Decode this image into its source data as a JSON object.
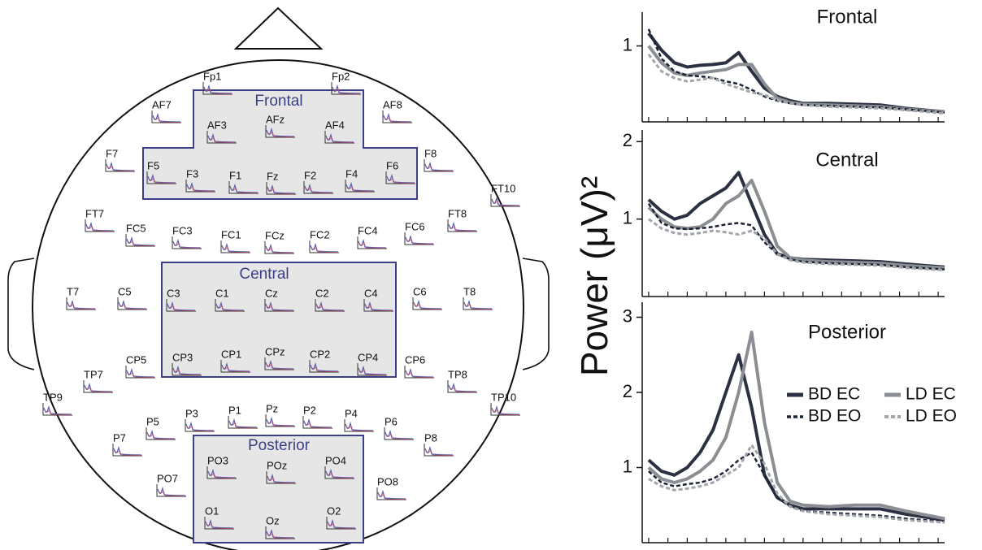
{
  "head": {
    "regions": [
      "Frontal",
      "Central",
      "Posterior"
    ],
    "electrodes": [
      "Fp1",
      "Fp2",
      "AF7",
      "AF8",
      "AF3",
      "AFz",
      "AF4",
      "F7",
      "F5",
      "F3",
      "F1",
      "Fz",
      "F2",
      "F4",
      "F6",
      "F8",
      "FT10",
      "FT7",
      "FC5",
      "FC3",
      "FC1",
      "FCz",
      "FC2",
      "FC4",
      "FC6",
      "FT8",
      "T7",
      "C5",
      "C3",
      "C1",
      "Cz",
      "C2",
      "C4",
      "C6",
      "T8",
      "TP7",
      "CP5",
      "CP3",
      "CP1",
      "CPz",
      "CP2",
      "CP4",
      "CP6",
      "TP8",
      "TP9",
      "TP10",
      "P7",
      "P5",
      "P3",
      "P1",
      "Pz",
      "P2",
      "P4",
      "P6",
      "P8",
      "PO7",
      "PO3",
      "POz",
      "PO4",
      "PO8",
      "O1",
      "Oz",
      "O2"
    ]
  },
  "chart_data": [
    {
      "type": "line",
      "title": "Frontal",
      "x": [
        2,
        3,
        4,
        5,
        6,
        7,
        8,
        9,
        10,
        11,
        12,
        13,
        14,
        16,
        18,
        20,
        22,
        25
      ],
      "xlim": [
        1.5,
        25
      ],
      "xticks": [
        2,
        3.5,
        5,
        6.5,
        8,
        9.5,
        11,
        12.5,
        14,
        15.5,
        17,
        18.5,
        20,
        21.5,
        23,
        24.5
      ],
      "ylim": [
        0.1,
        1.4
      ],
      "yticks": [
        1
      ],
      "series": [
        {
          "color": "#2b3142",
          "width": 4,
          "dash": false,
          "values": [
            1.15,
            0.95,
            0.8,
            0.75,
            0.77,
            0.78,
            0.8,
            0.92,
            0.7,
            0.5,
            0.4,
            0.35,
            0.32,
            0.32,
            0.31,
            0.3,
            0.26,
            0.22
          ]
        },
        {
          "color": "#8b8e92",
          "width": 4,
          "dash": false,
          "values": [
            1.0,
            0.8,
            0.68,
            0.65,
            0.68,
            0.7,
            0.72,
            0.78,
            0.78,
            0.55,
            0.38,
            0.33,
            0.31,
            0.3,
            0.29,
            0.28,
            0.25,
            0.22
          ]
        },
        {
          "color": "#1c2236",
          "width": 2.5,
          "dash": true,
          "values": [
            1.2,
            0.85,
            0.7,
            0.65,
            0.64,
            0.62,
            0.58,
            0.55,
            0.48,
            0.4,
            0.35,
            0.32,
            0.3,
            0.29,
            0.28,
            0.27,
            0.25,
            0.21
          ]
        },
        {
          "color": "#a2a5aa",
          "width": 3,
          "dash": true,
          "values": [
            0.9,
            0.7,
            0.62,
            0.58,
            0.6,
            0.62,
            0.55,
            0.5,
            0.45,
            0.42,
            0.36,
            0.32,
            0.3,
            0.28,
            0.27,
            0.26,
            0.24,
            0.2
          ]
        }
      ]
    },
    {
      "type": "line",
      "title": "Central",
      "ylabel": "Power (μV)²",
      "x": [
        2,
        3,
        4,
        5,
        6,
        7,
        8,
        9,
        10,
        11,
        12,
        13,
        14,
        16,
        18,
        20,
        22,
        25
      ],
      "xlim": [
        1.5,
        25
      ],
      "xticks": [
        2,
        3.5,
        5,
        6.5,
        8,
        9.5,
        11,
        12.5,
        14,
        15.5,
        17,
        18.5,
        20,
        21.5,
        23,
        24.5
      ],
      "ylim": [
        0,
        2.15
      ],
      "yticks": [
        1,
        2
      ],
      "series": [
        {
          "color": "#2b3142",
          "width": 4,
          "dash": false,
          "values": [
            1.25,
            1.1,
            1.0,
            1.05,
            1.2,
            1.3,
            1.4,
            1.6,
            1.2,
            0.8,
            0.55,
            0.5,
            0.48,
            0.47,
            0.46,
            0.45,
            0.42,
            0.38
          ]
        },
        {
          "color": "#8b8e92",
          "width": 4,
          "dash": false,
          "values": [
            1.15,
            1.0,
            0.9,
            0.88,
            0.9,
            1.0,
            1.2,
            1.3,
            1.5,
            1.1,
            0.65,
            0.5,
            0.47,
            0.45,
            0.44,
            0.43,
            0.4,
            0.37
          ]
        },
        {
          "color": "#1c2236",
          "width": 2.5,
          "dash": true,
          "values": [
            1.2,
            0.95,
            0.88,
            0.87,
            0.88,
            0.9,
            0.93,
            0.95,
            0.92,
            0.7,
            0.55,
            0.48,
            0.45,
            0.43,
            0.42,
            0.41,
            0.38,
            0.35
          ]
        },
        {
          "color": "#a2a5aa",
          "width": 3,
          "dash": true,
          "values": [
            1.0,
            0.88,
            0.82,
            0.8,
            0.82,
            0.85,
            0.83,
            0.8,
            0.85,
            0.75,
            0.55,
            0.47,
            0.44,
            0.42,
            0.41,
            0.4,
            0.37,
            0.34
          ]
        }
      ]
    },
    {
      "type": "line",
      "title": "Posterior",
      "legend": "right",
      "x": [
        2,
        3,
        4,
        5,
        6,
        7,
        8,
        9,
        10,
        11,
        12,
        13,
        14,
        16,
        18,
        20,
        22,
        25
      ],
      "xlim": [
        1.5,
        25
      ],
      "xticks": [
        2,
        3.5,
        5,
        6.5,
        8,
        9.5,
        11,
        12.5,
        14,
        15.5,
        17,
        18.5,
        20,
        21.5,
        23,
        24.5
      ],
      "ylim": [
        0,
        3.2
      ],
      "yticks": [
        1,
        2,
        3
      ],
      "series": [
        {
          "name": "BD EC",
          "color": "#2b3142",
          "width": 4,
          "dash": false,
          "values": [
            1.1,
            0.95,
            0.9,
            1.0,
            1.2,
            1.5,
            2.0,
            2.5,
            1.8,
            0.9,
            0.6,
            0.5,
            0.45,
            0.45,
            0.45,
            0.45,
            0.38,
            0.3
          ]
        },
        {
          "name": "LD EC",
          "color": "#8b8e92",
          "width": 4,
          "dash": false,
          "values": [
            1.0,
            0.85,
            0.8,
            0.85,
            0.95,
            1.1,
            1.4,
            2.0,
            2.8,
            1.6,
            0.8,
            0.55,
            0.5,
            0.48,
            0.5,
            0.5,
            0.42,
            0.32
          ]
        },
        {
          "name": "BD EO",
          "color": "#1c2236",
          "width": 2.5,
          "dash": true,
          "values": [
            0.95,
            0.8,
            0.75,
            0.78,
            0.8,
            0.85,
            0.95,
            1.1,
            1.2,
            0.9,
            0.6,
            0.48,
            0.42,
            0.4,
            0.38,
            0.36,
            0.32,
            0.28
          ]
        },
        {
          "name": "LD EO",
          "color": "#a2a5aa",
          "width": 3,
          "dash": true,
          "values": [
            0.85,
            0.75,
            0.7,
            0.72,
            0.75,
            0.8,
            0.9,
            1.0,
            1.3,
            1.05,
            0.65,
            0.48,
            0.42,
            0.38,
            0.36,
            0.34,
            0.3,
            0.27
          ]
        }
      ]
    }
  ]
}
